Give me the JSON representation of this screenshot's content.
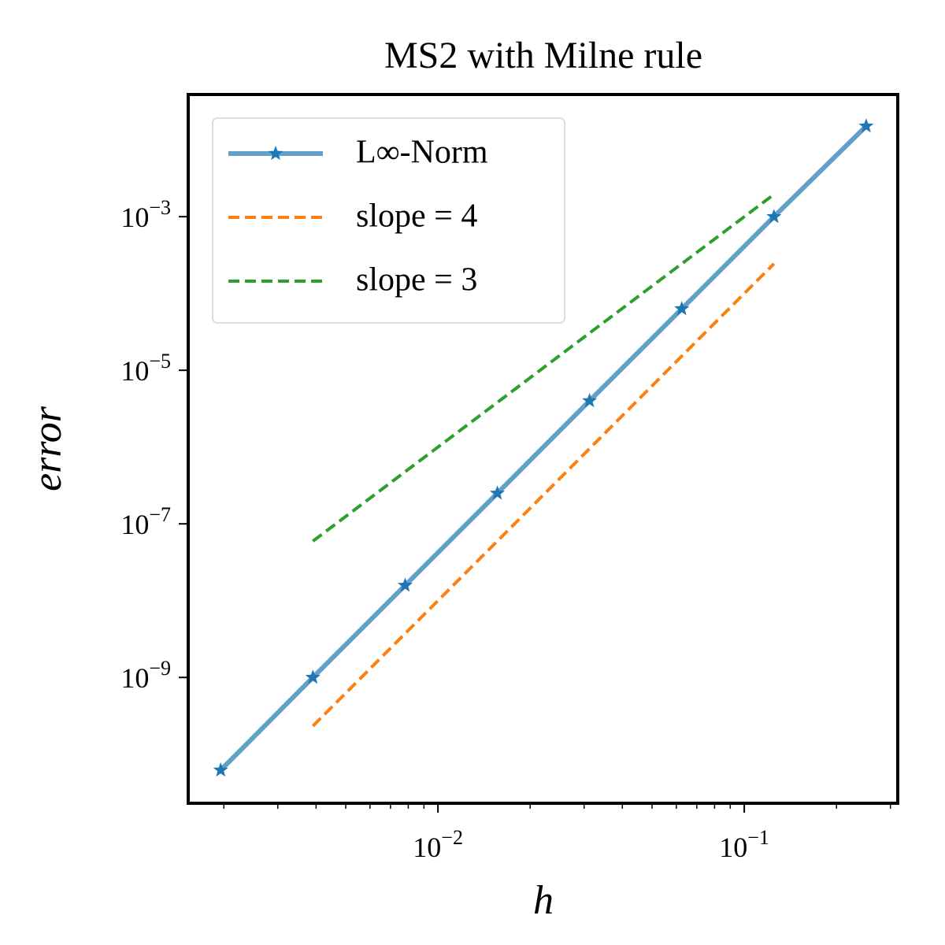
{
  "chart_data": {
    "type": "line",
    "title": "MS2 with Milne rule",
    "xlabel": "h",
    "ylabel": "error",
    "xscale": "log",
    "yscale": "log",
    "xlim": [
      0.00153,
      0.317
    ],
    "ylim": [
      2.3e-11,
      0.039
    ],
    "xticks": [
      {
        "value": 0.01,
        "label": "10−2"
      },
      {
        "value": 0.1,
        "label": "10−1"
      }
    ],
    "xticks_minor": [
      0.002,
      0.003,
      0.004,
      0.005,
      0.006,
      0.007,
      0.008,
      0.009,
      0.02,
      0.03,
      0.04,
      0.05,
      0.06,
      0.07,
      0.08,
      0.09,
      0.2,
      0.3
    ],
    "yticks": [
      {
        "value": 0.001,
        "label": "10−3"
      },
      {
        "value": 1e-05,
        "label": "10−5"
      },
      {
        "value": 1e-07,
        "label": "10−7"
      },
      {
        "value": 1e-09,
        "label": "10−9"
      }
    ],
    "legend": "upper left",
    "series": [
      {
        "name": "L∞-Norm",
        "color": "#1f77b4",
        "style": "solid",
        "marker": "star",
        "x": [
          0.001953,
          0.003906,
          0.007813,
          0.015625,
          0.03125,
          0.0625,
          0.125,
          0.25
        ],
        "values": [
          6.2e-11,
          1e-09,
          1.58e-08,
          2.5e-07,
          4e-06,
          6.3e-05,
          0.001,
          0.0151
        ]
      },
      {
        "name": "slope = 4",
        "color": "#ff7f0e",
        "style": "dashed",
        "x": [
          0.003906,
          0.007813,
          0.015625,
          0.03125,
          0.0625,
          0.125
        ],
        "values": [
          2.33e-10,
          3.73e-09,
          5.96e-08,
          9.54e-07,
          1.53e-05,
          0.000244
        ]
      },
      {
        "name": "slope = 3",
        "color": "#2ca02c",
        "style": "dashed",
        "x": [
          0.003906,
          0.007813,
          0.015625,
          0.03125,
          0.0625,
          0.125
        ],
        "values": [
          5.96e-08,
          4.77e-07,
          3.81e-06,
          3.05e-05,
          0.000244,
          0.00195
        ]
      }
    ]
  }
}
